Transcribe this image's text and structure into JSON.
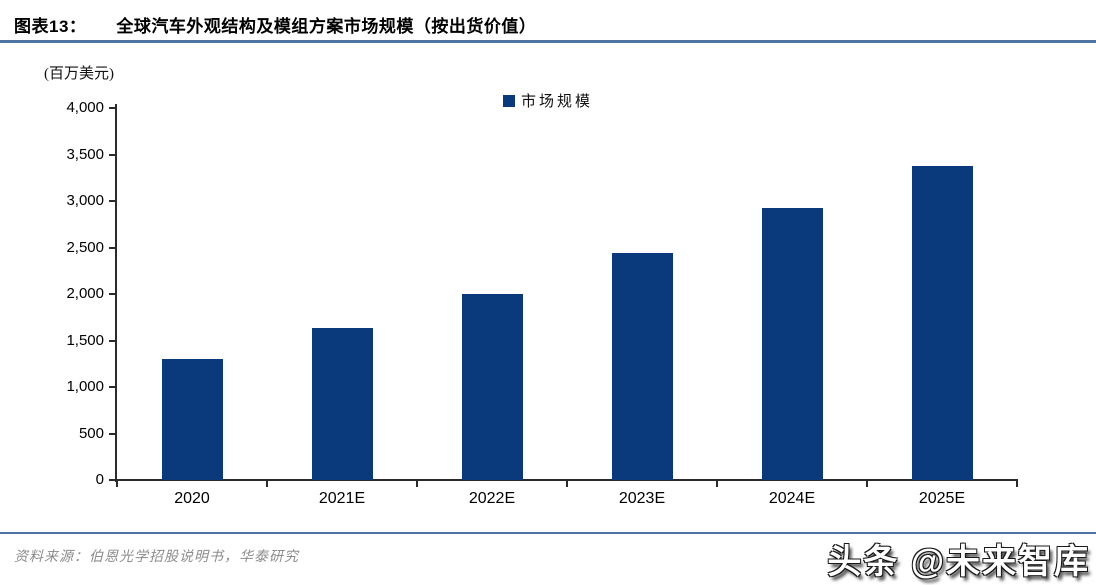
{
  "header": {
    "label": "图表13：",
    "title": "全球汽车外观结构及模组方案市场规模（按出货价值）"
  },
  "chart_data": {
    "type": "bar",
    "title": "全球汽车外观结构及模组方案市场规模（按出货价值）",
    "unit_label": "(百万美元)",
    "categories": [
      "2020",
      "2021E",
      "2022E",
      "2023E",
      "2024E",
      "2025E"
    ],
    "values": [
      1300,
      1630,
      2000,
      2440,
      2920,
      3380
    ],
    "ylim": [
      0,
      4000
    ],
    "ytick_step": 500,
    "ytick_labels": [
      "0",
      "500",
      "1,000",
      "1,500",
      "2,000",
      "2,500",
      "3,000",
      "3,500",
      "4,000"
    ],
    "grid": false,
    "legend_position": "top-center",
    "legend": [
      {
        "label": "市场规模",
        "color": "#0a3a7b"
      }
    ],
    "bar_color": "#0a3a7b"
  },
  "footer": {
    "source": "资料来源：伯恩光学招股说明书，华泰研究",
    "watermark": "头条 @未来智库"
  },
  "colors": {
    "bar": "#0a3a7b",
    "divider": "#4f74a3",
    "axis": "#2b2b2b",
    "source_text": "#8c8c8c"
  }
}
